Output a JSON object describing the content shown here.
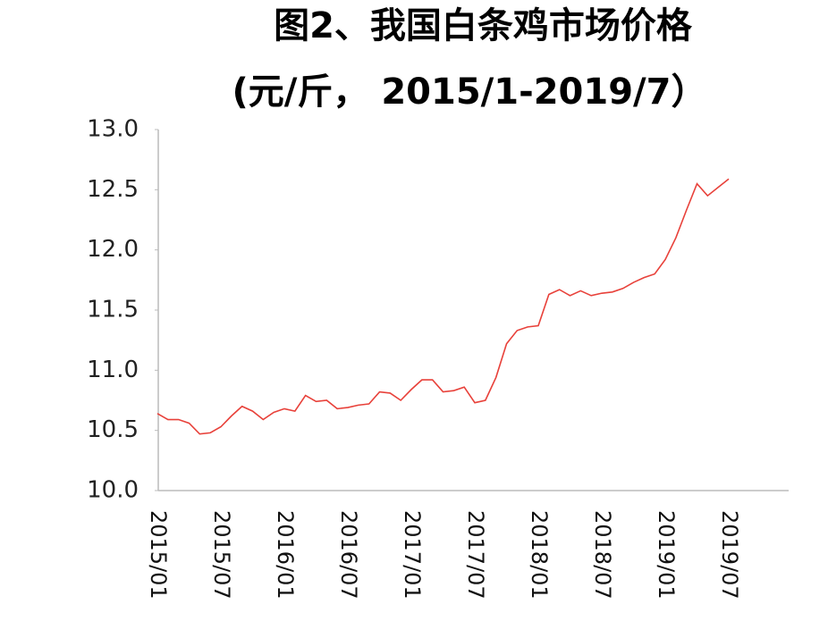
{
  "chart_data": {
    "type": "line",
    "title": "图2、我国白条鸡市场价格",
    "subtitle": "(元/斤， 2015/1-2019/7）",
    "categories": [
      "2015/01",
      null,
      null,
      null,
      null,
      null,
      "2015/07",
      null,
      null,
      null,
      null,
      null,
      "2016/01",
      null,
      null,
      null,
      null,
      null,
      "2016/07",
      null,
      null,
      null,
      null,
      null,
      "2017/01",
      null,
      null,
      null,
      null,
      null,
      "2017/07",
      null,
      null,
      null,
      null,
      null,
      "2018/01",
      null,
      null,
      null,
      null,
      null,
      "2018/07",
      null,
      null,
      null,
      null,
      null,
      "2019/01",
      null,
      null,
      null,
      null,
      null,
      "2019/07"
    ],
    "series": [
      {
        "name": "白条鸡市场价格",
        "color": "#e8413a",
        "values": [
          10.64,
          10.59,
          10.59,
          10.56,
          10.47,
          10.48,
          10.53,
          10.62,
          10.7,
          10.66,
          10.59,
          10.65,
          10.68,
          10.66,
          10.79,
          10.74,
          10.75,
          10.68,
          10.69,
          10.71,
          10.72,
          10.82,
          10.81,
          10.75,
          10.84,
          10.92,
          10.92,
          10.82,
          10.83,
          10.86,
          10.73,
          10.75,
          10.94,
          11.22,
          11.33,
          11.36,
          11.37,
          11.63,
          11.67,
          11.62,
          11.66,
          11.62,
          11.64,
          11.65,
          11.68,
          11.73,
          11.77,
          11.8,
          11.92,
          12.1,
          12.33,
          12.55,
          12.45,
          12.52,
          12.59
        ]
      }
    ],
    "ylim": [
      10,
      13
    ],
    "yticks": [
      {
        "value": 10,
        "label": "10.0"
      },
      {
        "value": 10.5,
        "label": "10.5"
      },
      {
        "value": 11,
        "label": "11.0"
      },
      {
        "value": 11.5,
        "label": "11.5"
      },
      {
        "value": 12,
        "label": "12.0"
      },
      {
        "value": 12.5,
        "label": "12.5"
      },
      {
        "value": 13,
        "label": "13.0"
      }
    ],
    "grid": false
  }
}
